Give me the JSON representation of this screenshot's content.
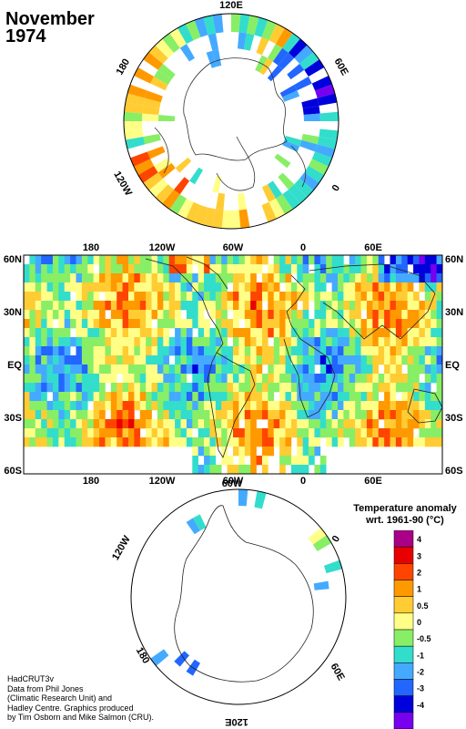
{
  "title": {
    "month": "November",
    "year": "1974"
  },
  "north_polar": {
    "labels": {
      "top": "120E",
      "left": "180",
      "right": "60E",
      "lower_left": "120W",
      "lower_right": "0"
    }
  },
  "main_map": {
    "lat_labels": [
      "60N",
      "30N",
      "EQ",
      "30S",
      "60S"
    ],
    "lon_labels": [
      "180",
      "120W",
      "60W",
      "0",
      "60E"
    ]
  },
  "south_polar": {
    "labels": {
      "top": "60W",
      "upper_left": "120W",
      "upper_right": "0",
      "lower_left": "180",
      "lower_right": "60E",
      "bottom": "120E"
    }
  },
  "legend": {
    "title_line1": "Temperature anomaly",
    "title_line2": "wrt. 1961-90  (°C)",
    "levels": [
      {
        "label": "4",
        "color": "#aa0088"
      },
      {
        "label": "3",
        "color": "#e80000"
      },
      {
        "label": "2",
        "color": "#ff4400"
      },
      {
        "label": "1",
        "color": "#ff9900"
      },
      {
        "label": "0.5",
        "color": "#ffcc33"
      },
      {
        "label": "0",
        "color": "#ffff88"
      },
      {
        "label": "-0.5",
        "color": "#88ee66"
      },
      {
        "label": "-1",
        "color": "#33ddcc"
      },
      {
        "label": "-2",
        "color": "#44aaff"
      },
      {
        "label": "-3",
        "color": "#2266ff"
      },
      {
        "label": "-4",
        "color": "#0000dd"
      },
      {
        "label": "",
        "color": "#7700ee"
      }
    ]
  },
  "credit": [
    "HadCRUT3v",
    "Data from Phil Jones",
    "(Climatic Research Unit) and",
    "Hadley Centre.  Graphics produced",
    "by Tim Osborn and Mike Salmon (CRU)."
  ]
}
